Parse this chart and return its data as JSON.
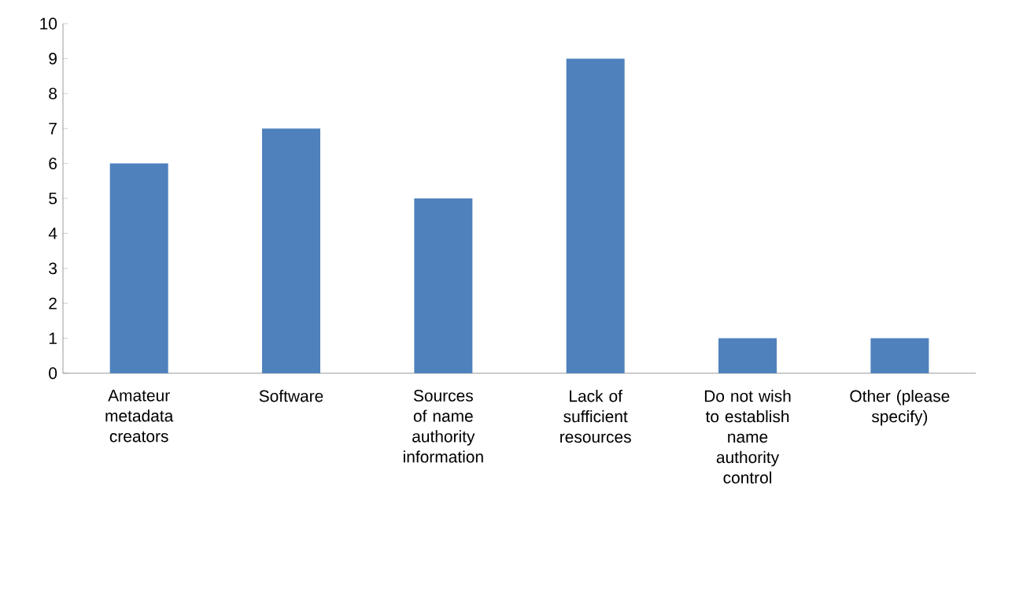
{
  "chart_data": {
    "type": "bar",
    "categories": [
      "Amateur metadata creators",
      "Software",
      "Sources of name authority information",
      "Lack of sufficient resources",
      "Do not wish to establish name authority control",
      "Other (please specify)"
    ],
    "values": [
      6,
      7,
      5,
      9,
      1,
      1
    ],
    "color": "#4f81bd",
    "ylim": [
      0,
      10
    ],
    "yticks": [
      0,
      1,
      2,
      3,
      4,
      5,
      6,
      7,
      8,
      9,
      10
    ]
  }
}
